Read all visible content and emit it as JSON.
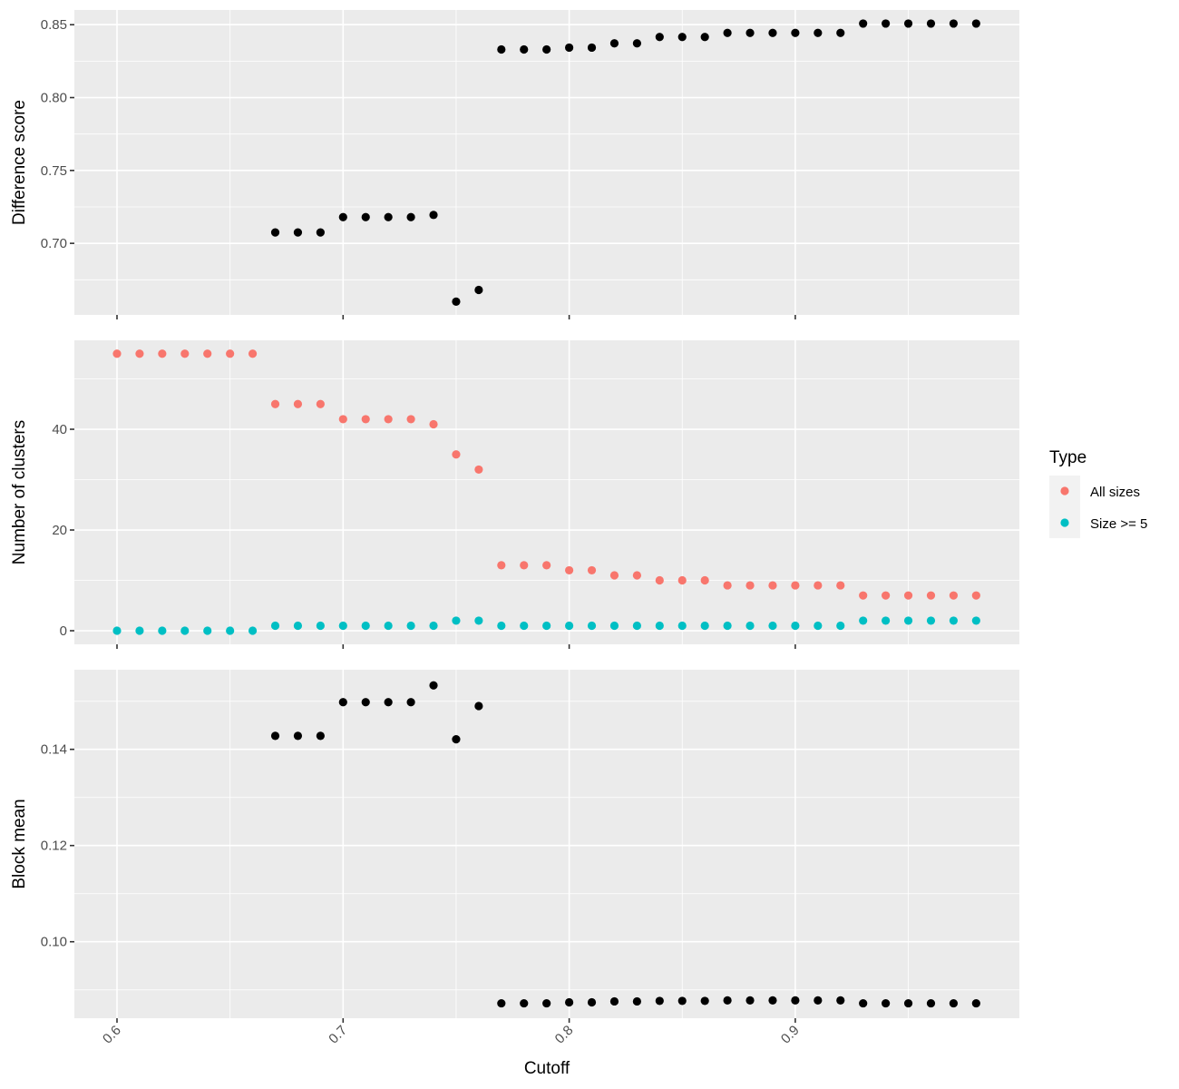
{
  "chart_data": {
    "type": "scatter",
    "layout": "faceted-vertical",
    "xlabel": "Cutoff",
    "x": [
      0.6,
      0.61,
      0.62,
      0.63,
      0.64,
      0.65,
      0.66,
      0.67,
      0.68,
      0.69,
      0.7,
      0.71,
      0.72,
      0.73,
      0.74,
      0.75,
      0.76,
      0.77,
      0.78,
      0.79,
      0.8,
      0.81,
      0.82,
      0.83,
      0.84,
      0.85,
      0.86,
      0.87,
      0.88,
      0.89,
      0.9,
      0.91,
      0.92,
      0.93,
      0.94,
      0.95,
      0.96,
      0.97,
      0.98
    ],
    "xlim": [
      0.58,
      1.0
    ],
    "xticks": [
      0.6,
      0.7,
      0.8,
      0.9
    ],
    "xtick_labels": [
      "0.6",
      "0.7",
      "0.8",
      "0.9"
    ],
    "grid": true,
    "legend": {
      "title": "Type",
      "position": "right",
      "entries": [
        {
          "label": "All sizes",
          "color": "#f8766d"
        },
        {
          "label": "Size >= 5",
          "color": "#00bfc4"
        }
      ]
    },
    "panels": [
      {
        "ylabel": "Difference score",
        "ylim": [
          0.6509,
          0.8601
        ],
        "yticks": [
          0.7,
          0.75,
          0.8,
          0.85
        ],
        "ytick_labels": [
          "0.70",
          "0.75",
          "0.80",
          "0.85"
        ],
        "yminor": [
          0.675,
          0.725,
          0.775,
          0.825
        ],
        "series": [
          {
            "name": "Difference score",
            "color": "#000000",
            "x": [
              0.67,
              0.68,
              0.69,
              0.7,
              0.71,
              0.72,
              0.73,
              0.74,
              0.75,
              0.76,
              0.77,
              0.78,
              0.79,
              0.8,
              0.81,
              0.82,
              0.83,
              0.84,
              0.85,
              0.86,
              0.87,
              0.88,
              0.89,
              0.9,
              0.91,
              0.92,
              0.93,
              0.94,
              0.95,
              0.96,
              0.97,
              0.98
            ],
            "values": [
              0.7075,
              0.7075,
              0.7075,
              0.718,
              0.718,
              0.718,
              0.718,
              0.7195,
              0.66,
              0.668,
              0.833,
              0.833,
              0.833,
              0.8343,
              0.8343,
              0.8372,
              0.8372,
              0.8416,
              0.8416,
              0.8416,
              0.8444,
              0.8444,
              0.8444,
              0.8444,
              0.8444,
              0.8444,
              0.8508,
              0.8508,
              0.8508,
              0.8508,
              0.8508,
              0.8508
            ]
          }
        ]
      },
      {
        "ylabel": "Number of clusters",
        "ylim": [
          -2.7,
          57.66
        ],
        "yticks": [
          0,
          20,
          40
        ],
        "ytick_labels": [
          "0",
          "20",
          "40"
        ],
        "yminor": [
          10,
          30,
          50
        ],
        "series": [
          {
            "name": "All sizes",
            "color": "#f8766d",
            "x": [
              0.6,
              0.61,
              0.62,
              0.63,
              0.64,
              0.65,
              0.66,
              0.67,
              0.68,
              0.69,
              0.7,
              0.71,
              0.72,
              0.73,
              0.74,
              0.75,
              0.76,
              0.77,
              0.78,
              0.79,
              0.8,
              0.81,
              0.82,
              0.83,
              0.84,
              0.85,
              0.86,
              0.87,
              0.88,
              0.89,
              0.9,
              0.91,
              0.92,
              0.93,
              0.94,
              0.95,
              0.96,
              0.97,
              0.98
            ],
            "values": [
              55,
              55,
              55,
              55,
              55,
              55,
              55,
              45,
              45,
              45,
              42,
              42,
              42,
              42,
              41,
              35,
              32,
              13,
              13,
              13,
              12,
              12,
              11,
              11,
              10,
              10,
              10,
              9,
              9,
              9,
              9,
              9,
              9,
              7,
              7,
              7,
              7,
              7,
              7
            ]
          },
          {
            "name": "Size >= 5",
            "color": "#00bfc4",
            "x": [
              0.6,
              0.61,
              0.62,
              0.63,
              0.64,
              0.65,
              0.66,
              0.67,
              0.68,
              0.69,
              0.7,
              0.71,
              0.72,
              0.73,
              0.74,
              0.75,
              0.76,
              0.77,
              0.78,
              0.79,
              0.8,
              0.81,
              0.82,
              0.83,
              0.84,
              0.85,
              0.86,
              0.87,
              0.88,
              0.89,
              0.9,
              0.91,
              0.92,
              0.93,
              0.94,
              0.95,
              0.96,
              0.97,
              0.98
            ],
            "values": [
              0,
              0,
              0,
              0,
              0,
              0,
              0,
              1,
              1,
              1,
              1,
              1,
              1,
              1,
              1,
              2,
              2,
              1,
              1,
              1,
              1,
              1,
              1,
              1,
              1,
              1,
              1,
              1,
              1,
              1,
              1,
              1,
              1,
              2,
              2,
              2,
              2,
              2,
              2
            ]
          }
        ]
      },
      {
        "ylabel": "Block mean",
        "ylim": [
          0.0841,
          0.15655
        ],
        "yticks": [
          0.1,
          0.12,
          0.14
        ],
        "ytick_labels": [
          "0.10",
          "0.12",
          "0.14"
        ],
        "yminor": [
          0.09,
          0.11,
          0.13,
          0.15
        ],
        "series": [
          {
            "name": "Block mean",
            "color": "#000000",
            "x": [
              0.67,
              0.68,
              0.69,
              0.7,
              0.71,
              0.72,
              0.73,
              0.74,
              0.75,
              0.76,
              0.77,
              0.78,
              0.79,
              0.8,
              0.81,
              0.82,
              0.83,
              0.84,
              0.85,
              0.86,
              0.87,
              0.88,
              0.89,
              0.9,
              0.91,
              0.92,
              0.93,
              0.94,
              0.95,
              0.96,
              0.97,
              0.98
            ],
            "values": [
              0.1428,
              0.1428,
              0.1428,
              0.1498,
              0.1498,
              0.1498,
              0.1498,
              0.1533,
              0.1421,
              0.149,
              0.0872,
              0.0872,
              0.0872,
              0.0874,
              0.0874,
              0.0876,
              0.0876,
              0.0877,
              0.0877,
              0.0877,
              0.0878,
              0.0878,
              0.0878,
              0.0878,
              0.0878,
              0.0878,
              0.0872,
              0.0872,
              0.0872,
              0.0872,
              0.0872,
              0.0872
            ]
          }
        ]
      }
    ]
  }
}
